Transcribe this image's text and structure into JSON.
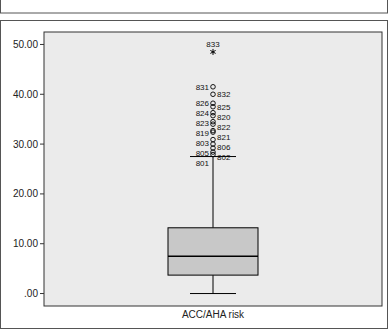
{
  "chart_data": {
    "type": "box",
    "categories": [
      "ACC/AHA risk"
    ],
    "color": "#c8c8c8",
    "ylim": [
      -2.5,
      52.5
    ],
    "yticks": [
      {
        "value": 0,
        "label": ".00"
      },
      {
        "value": 10,
        "label": "10.00"
      },
      {
        "value": 20,
        "label": "20.00"
      },
      {
        "value": 30,
        "label": "30.00"
      },
      {
        "value": 40,
        "label": "40.00"
      },
      {
        "value": 50,
        "label": "50.00"
      }
    ],
    "boxes": [
      {
        "min": 0,
        "q1": 3.7,
        "median": 7.5,
        "q3": 13.2,
        "max": 27.5,
        "outliers": [
          {
            "value": 41.5,
            "label": "831"
          },
          {
            "value": 40.0,
            "label": "832"
          },
          {
            "value": 38.2,
            "label": "826"
          },
          {
            "value": 37.5,
            "label": "825"
          },
          {
            "value": 36.3,
            "label": "824"
          },
          {
            "value": 35.7,
            "label": "820"
          },
          {
            "value": 34.5,
            "label": "823"
          },
          {
            "value": 34.0,
            "label": "822"
          },
          {
            "value": 32.7,
            "label": "819"
          },
          {
            "value": 32.4,
            "label": "821"
          },
          {
            "value": 30.9,
            "label": "803"
          },
          {
            "value": 30.0,
            "label": "806"
          },
          {
            "value": 29.2,
            "label": "805"
          },
          {
            "value": 28.4,
            "label": "802"
          },
          {
            "value": 27.9,
            "label": "801"
          }
        ],
        "extremes": [
          {
            "value": 48.5,
            "label": "833"
          }
        ]
      }
    ]
  }
}
